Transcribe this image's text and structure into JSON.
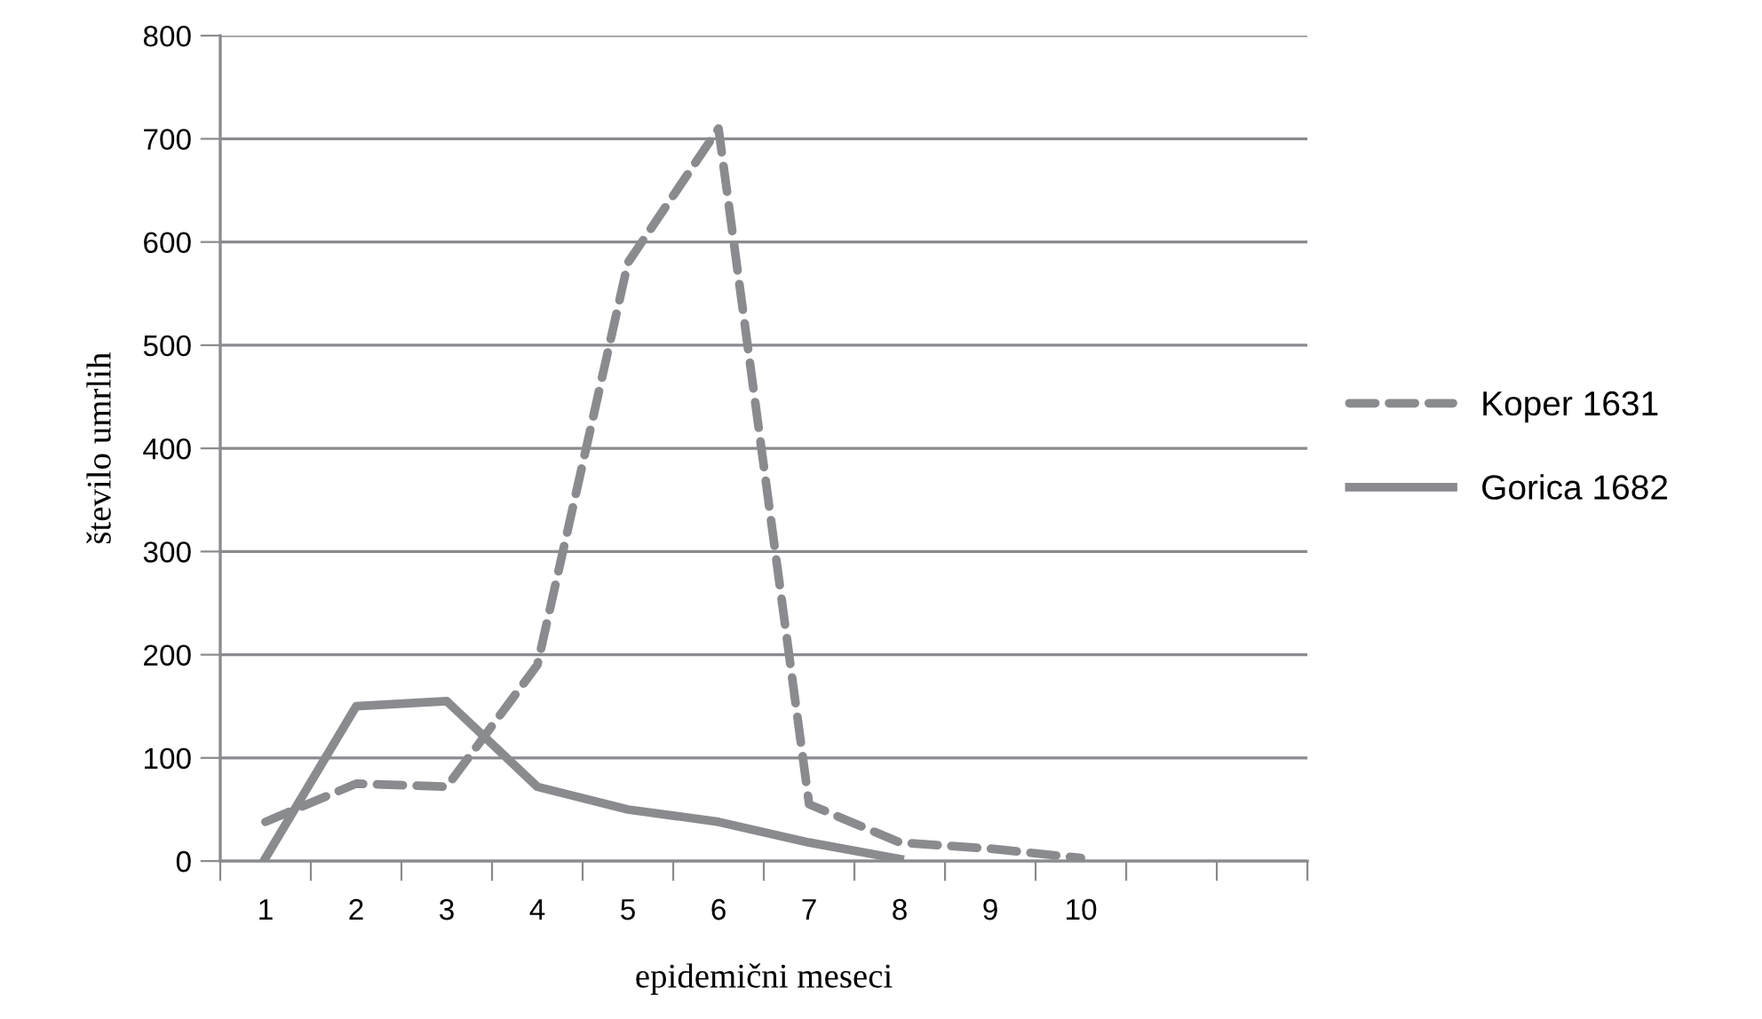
{
  "chart_data": {
    "type": "line",
    "xlabel": "epidemični meseci",
    "ylabel": "število umrlih",
    "categories": [
      "1",
      "2",
      "3",
      "4",
      "5",
      "6",
      "7",
      "8",
      "9",
      "10",
      null,
      null
    ],
    "series": [
      {
        "name": "Koper 1631",
        "color": "#8a8b8f",
        "line_style": "dashed",
        "values": [
          38,
          75,
          72,
          190,
          580,
          710,
          55,
          18,
          12,
          3,
          null,
          null
        ]
      },
      {
        "name": "Gorica 1682",
        "color": "#8a8b8f",
        "line_style": "solid",
        "values": [
          3,
          150,
          155,
          72,
          50,
          38,
          18,
          2,
          null,
          null,
          null,
          null
        ]
      }
    ],
    "ylim": [
      0,
      800
    ],
    "yticks": [
      0,
      100,
      200,
      300,
      400,
      500,
      600,
      700,
      800
    ],
    "grid": "y",
    "legend": "right",
    "marker": "none"
  }
}
